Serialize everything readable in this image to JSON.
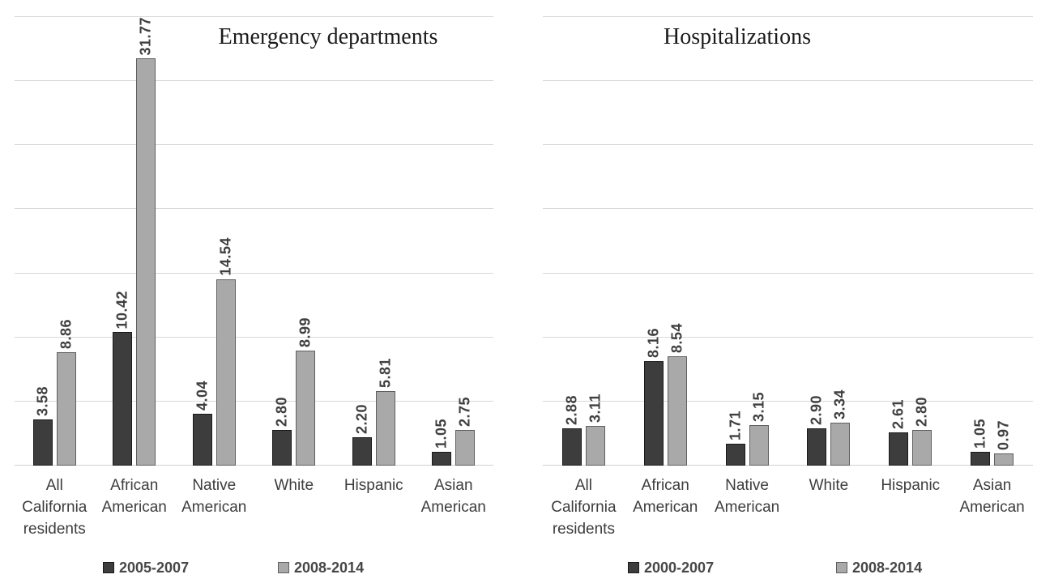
{
  "figure": {
    "background": "#ffffff"
  },
  "chart_data": [
    {
      "type": "bar",
      "title": "Emergency departments",
      "categories": [
        "All\nCalifornia\nresidents",
        "African\nAmerican",
        "Native\nAmerican",
        "White",
        "Hispanic",
        "Asian\nAmerican"
      ],
      "series": [
        {
          "name": "2005-2007",
          "color": "#3d3d3d",
          "border_color": "#1a1a1a",
          "values": [
            3.58,
            10.42,
            4.04,
            2.8,
            2.2,
            1.05
          ],
          "labels": [
            "3.58",
            "10.42",
            "4.04",
            "2.80",
            "2.20",
            "1.05"
          ]
        },
        {
          "name": "2008-2014",
          "color": "#a9a9a9",
          "border_color": "#5f5f5f",
          "values": [
            8.86,
            31.77,
            14.54,
            8.99,
            5.81,
            2.75
          ],
          "labels": [
            "8.86",
            "31.77",
            "14.54",
            "8.99",
            "5.81",
            "2.75"
          ]
        }
      ],
      "xlabel": "",
      "ylabel": "",
      "ylim": [
        0,
        35
      ],
      "gridline_step": 5,
      "grid": true,
      "y_axis_tick_labels_visible": false,
      "legend_position": "bottom",
      "value_labels_rotated_degrees": -90
    },
    {
      "type": "bar",
      "title": "Hospitalizations",
      "categories": [
        "All\nCalifornia\nresidents",
        "African\nAmerican",
        "Native\nAmerican",
        "White",
        "Hispanic",
        "Asian\nAmerican"
      ],
      "series": [
        {
          "name": "2000-2007",
          "color": "#3d3d3d",
          "border_color": "#1a1a1a",
          "values": [
            2.88,
            8.16,
            1.71,
            2.9,
            2.61,
            1.05
          ],
          "labels": [
            "2.88",
            "8.16",
            "1.71",
            "2.90",
            "2.61",
            "1.05"
          ]
        },
        {
          "name": "2008-2014",
          "color": "#a9a9a9",
          "border_color": "#5f5f5f",
          "values": [
            3.11,
            8.54,
            3.15,
            3.34,
            2.8,
            0.97
          ],
          "labels": [
            "3.11",
            "8.54",
            "3.15",
            "3.34",
            "2.80",
            "0.97"
          ]
        }
      ],
      "xlabel": "",
      "ylabel": "",
      "ylim": [
        0,
        35
      ],
      "gridline_step": 5,
      "grid": true,
      "y_axis_tick_labels_visible": false,
      "legend_position": "bottom",
      "value_labels_rotated_degrees": -90
    }
  ]
}
